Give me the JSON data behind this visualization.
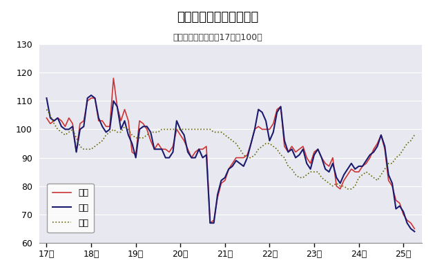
{
  "title": "鳥取県鉱工業指数の推移",
  "subtitle": "（季節調整済、平成17年＝100）",
  "ylim": [
    60,
    130
  ],
  "yticks": [
    60,
    70,
    80,
    90,
    100,
    110,
    120,
    130
  ],
  "plot_bg": "#e8e8f0",
  "fig_bg": "#ffffff",
  "legend_labels": [
    "生産",
    "出荷",
    "在庫"
  ],
  "color_prod": "#cc3333",
  "color_ship": "#1a1a6e",
  "color_inv": "#666600",
  "x_labels": [
    "17年",
    "18年",
    "19年",
    "20年",
    "21年",
    "22年",
    "23年",
    "24年",
    "25年"
  ],
  "x_tick_positions": [
    0,
    12,
    24,
    36,
    48,
    60,
    72,
    84,
    96
  ],
  "production": [
    104,
    102,
    103,
    104,
    103,
    101,
    104,
    102,
    92,
    102,
    103,
    110,
    111,
    111,
    103,
    103,
    101,
    101,
    118,
    108,
    103,
    107,
    103,
    92,
    91,
    103,
    102,
    100,
    96,
    93,
    95,
    93,
    93,
    92,
    94,
    100,
    98,
    96,
    93,
    90,
    92,
    93,
    93,
    94,
    67,
    68,
    76,
    81,
    82,
    86,
    88,
    90,
    90,
    90,
    91,
    95,
    100,
    101,
    100,
    100,
    100,
    102,
    107,
    108,
    94,
    92,
    94,
    92,
    93,
    94,
    90,
    88,
    92,
    93,
    90,
    88,
    87,
    90,
    80,
    79,
    82,
    84,
    86,
    85,
    85,
    87,
    88,
    90,
    93,
    95,
    98,
    93,
    82,
    80,
    75,
    74,
    70,
    68,
    67,
    65
  ],
  "shipment": [
    111,
    104,
    103,
    104,
    101,
    100,
    100,
    101,
    92,
    100,
    101,
    111,
    112,
    111,
    104,
    101,
    99,
    100,
    110,
    108,
    100,
    103,
    98,
    95,
    90,
    100,
    101,
    101,
    99,
    93,
    93,
    93,
    90,
    90,
    92,
    103,
    100,
    98,
    92,
    90,
    90,
    93,
    90,
    91,
    67,
    67,
    77,
    82,
    83,
    86,
    87,
    89,
    88,
    87,
    90,
    95,
    100,
    107,
    106,
    103,
    96,
    99,
    106,
    108,
    96,
    92,
    93,
    90,
    91,
    93,
    88,
    86,
    91,
    93,
    90,
    86,
    85,
    88,
    83,
    81,
    84,
    86,
    88,
    86,
    87,
    87,
    89,
    91,
    92,
    94,
    98,
    94,
    84,
    81,
    72,
    73,
    71,
    67,
    65,
    64
  ],
  "inventory": [
    107,
    105,
    102,
    100,
    99,
    98,
    99,
    100,
    97,
    94,
    93,
    93,
    93,
    94,
    95,
    96,
    98,
    99,
    100,
    99,
    99,
    101,
    100,
    98,
    97,
    97,
    97,
    98,
    99,
    99,
    99,
    100,
    100,
    100,
    100,
    100,
    100,
    100,
    100,
    100,
    100,
    100,
    100,
    100,
    100,
    99,
    99,
    99,
    98,
    97,
    96,
    95,
    93,
    91,
    90,
    90,
    91,
    93,
    94,
    95,
    95,
    94,
    93,
    91,
    90,
    87,
    86,
    84,
    83,
    83,
    84,
    85,
    85,
    85,
    83,
    82,
    81,
    80,
    81,
    80,
    80,
    79,
    79,
    80,
    83,
    84,
    85,
    84,
    83,
    82,
    84,
    86,
    88,
    88,
    90,
    91,
    93,
    95,
    96,
    98
  ],
  "n_points": 100
}
